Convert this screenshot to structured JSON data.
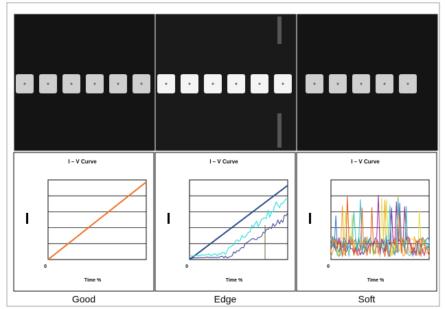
{
  "panels": [
    {
      "caption": "Good",
      "chart": {
        "title": "I – V Curve",
        "x_label": "Time %",
        "origin_label": "0"
      }
    },
    {
      "caption": "Edge",
      "chart": {
        "title": "I – V Curve",
        "x_label": "Time %",
        "origin_label": "0"
      }
    },
    {
      "caption": "Soft",
      "chart": {
        "title": "I – V Curve",
        "x_label": "Time %",
        "origin_label": "0"
      }
    }
  ]
}
